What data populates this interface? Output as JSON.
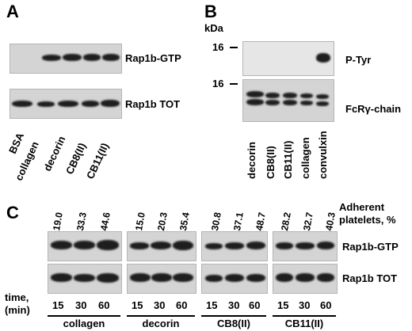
{
  "panelA": {
    "letter": "A",
    "blot_labels": [
      "Rap1b-GTP",
      "Rap1b TOT"
    ],
    "lanes": [
      "BSA",
      "collagen",
      "decorin",
      "CB8(II)",
      "CB11(II)"
    ]
  },
  "panelB": {
    "letter": "B",
    "unit": "kDa",
    "markers": [
      "16",
      "16"
    ],
    "blot_labels": [
      "P-Tyr",
      "FcRγ-chain"
    ],
    "lanes": [
      "decorin",
      "CB8(II)",
      "CB11(II)",
      "collagen",
      "convulxin"
    ]
  },
  "panelC": {
    "letter": "C",
    "adherent_label_1": "Adherent",
    "adherent_label_2": "platelets, %",
    "groups": [
      {
        "name": "collagen",
        "values": [
          "19.0",
          "33.3",
          "44.6"
        ]
      },
      {
        "name": "decorin",
        "values": [
          "15.0",
          "20.3",
          "35.4"
        ]
      },
      {
        "name": "CB8(II)",
        "values": [
          "30.8",
          "37.1",
          "48.7"
        ]
      },
      {
        "name": "CB11(II)",
        "values": [
          "28.2",
          "32.7",
          "40.3"
        ]
      }
    ],
    "times": [
      "15",
      "30",
      "60"
    ],
    "time_label_1": "time,",
    "time_label_2": "(min)",
    "blot_labels": [
      "Rap1b-GTP",
      "Rap1b TOT"
    ]
  }
}
